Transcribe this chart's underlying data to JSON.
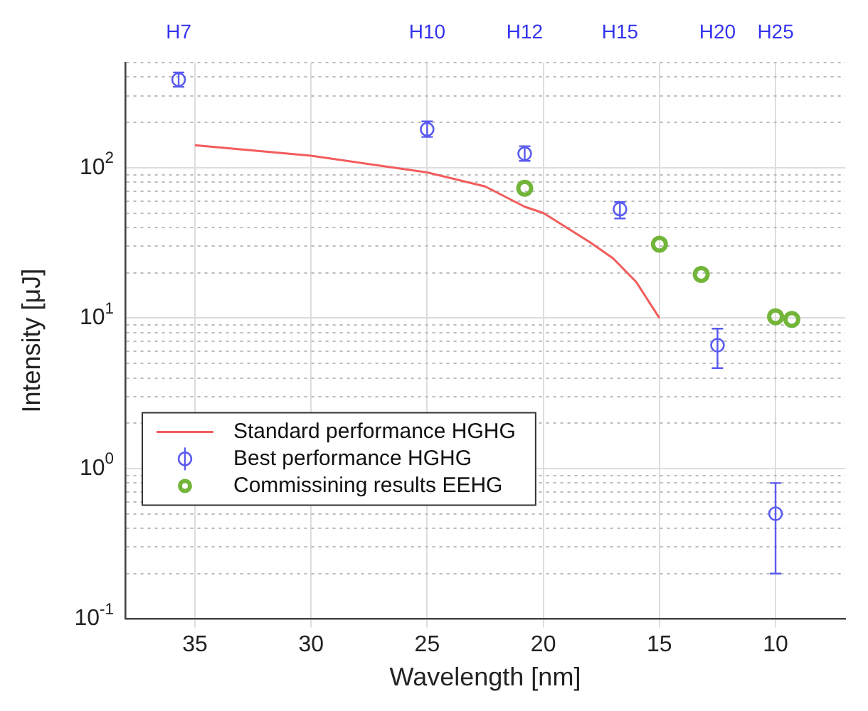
{
  "chart_data": {
    "type": "scatter",
    "xlabel": "Wavelength [nm]",
    "ylabel": "Intensity [μJ]",
    "xlim": [
      38,
      7
    ],
    "xticks": [
      35,
      30,
      25,
      20,
      15,
      10
    ],
    "annotations": [
      "H7",
      "H10",
      "H12",
      "H15",
      "H20",
      "H25"
    ],
    "ylim": [
      0.1,
      500
    ],
    "log": "y",
    "yticks": [
      {
        "value": 0.1,
        "label": "10$^{-1}$"
      },
      {
        "value": 0.2,
        "label": null
      },
      {
        "value": 0.3,
        "label": null
      },
      {
        "value": 0.4,
        "label": null
      },
      {
        "value": 0.5,
        "label": null
      },
      {
        "value": 0.6,
        "label": null
      },
      {
        "value": 0.7,
        "label": null
      },
      {
        "value": 0.8,
        "label": null
      },
      {
        "value": 0.9,
        "label": null
      },
      {
        "value": 1,
        "label": "10$^{0}$"
      },
      {
        "value": 2,
        "label": null
      },
      {
        "value": 3,
        "label": null
      },
      {
        "value": 4,
        "label": null
      },
      {
        "value": 5,
        "label": null
      },
      {
        "value": 6,
        "label": null
      },
      {
        "value": 7,
        "label": null
      },
      {
        "value": 8,
        "label": null
      },
      {
        "value": 9,
        "label": null
      },
      {
        "value": 10,
        "label": "10$^{1}$"
      },
      {
        "value": 20,
        "label": null
      },
      {
        "value": 30,
        "label": null
      },
      {
        "value": 40,
        "label": null
      },
      {
        "value": 50,
        "label": null
      },
      {
        "value": 60,
        "label": null
      },
      {
        "value": 70,
        "label": null
      },
      {
        "value": 80,
        "label": null
      },
      {
        "value": 90,
        "label": null
      },
      {
        "value": 100,
        "label": "10$^{2}$"
      },
      {
        "value": 200,
        "label": null
      },
      {
        "value": 300,
        "label": null
      },
      {
        "value": 400,
        "label": null
      },
      {
        "value": 500,
        "label": null
      }
    ],
    "grid": true,
    "legend": "bottom left",
    "series": [
      {
        "name": "Standard performance HGHG",
        "type": "line",
        "marker": "none",
        "color": "#f25c5c",
        "x": [
          35,
          30,
          25,
          22.5,
          20.8,
          20,
          18,
          17,
          16,
          15
        ],
        "values": [
          141,
          120,
          93,
          75,
          55,
          50,
          32,
          25,
          17.4,
          10
        ]
      },
      {
        "name": "Best performance HGHG",
        "marker": "circle",
        "color": "#5a5af0",
        "x": [
          35.7,
          25,
          20.8,
          16.7,
          12.5,
          10
        ],
        "values": [
          385,
          180,
          124,
          53,
          6.6,
          0.5
        ],
        "errors": [
          [
            345,
            430
          ],
          [
            160,
            203
          ],
          [
            111,
            139
          ],
          [
            46,
            59
          ],
          [
            4.65,
            8.5
          ],
          [
            0.2,
            0.8
          ]
        ]
      },
      {
        "name": "Commissining results EEHG",
        "marker": "circle",
        "color": "#72b53a",
        "x": [
          20.8,
          15,
          13.2,
          10,
          9.3
        ],
        "values": [
          73,
          31,
          19.5,
          10.2,
          9.8
        ]
      }
    ]
  }
}
